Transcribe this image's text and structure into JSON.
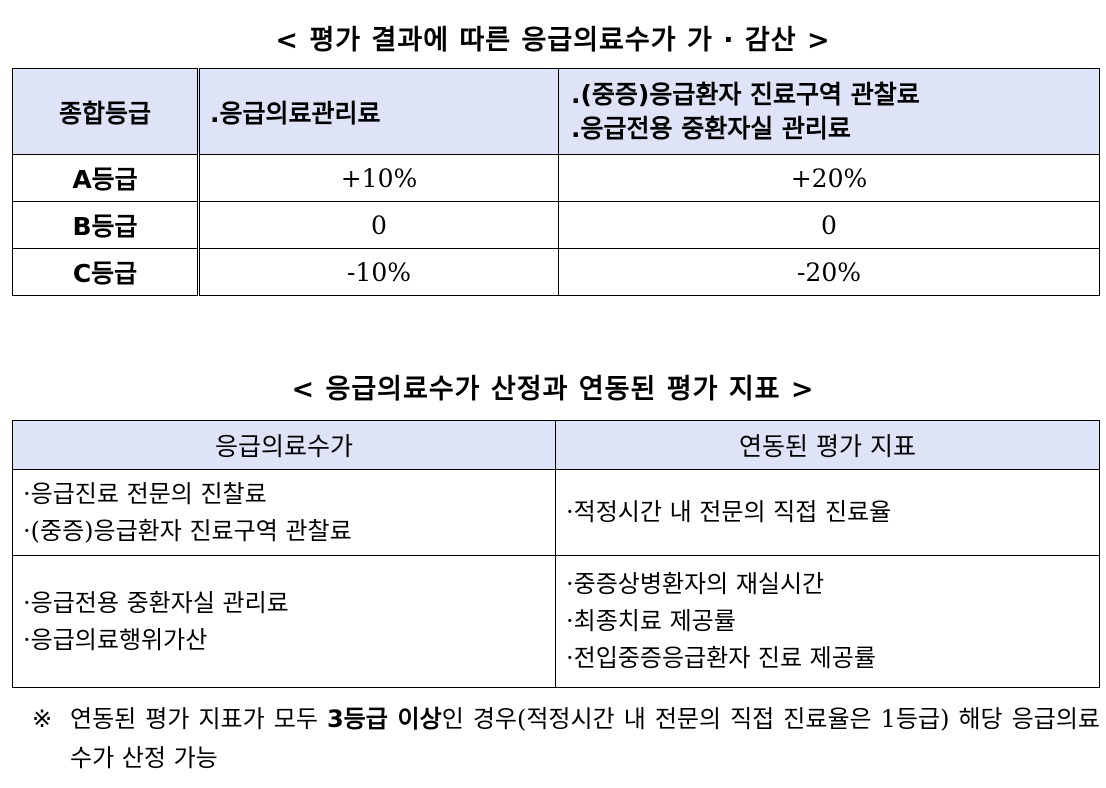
{
  "title1": "< 평가 결과에 따른 응급의료수가 가 · 감산 >",
  "table1": {
    "headers": [
      "종합등급",
      ".응급의료관리료",
      ".(중증)응급환자 진료구역 관찰료",
      ".응급전용 중환자실 관리료"
    ],
    "rows": [
      {
        "grade": "A등급",
        "col2": "+10%",
        "col3": "+20%"
      },
      {
        "grade": "B등급",
        "col2": "0",
        "col3": "0"
      },
      {
        "grade": "C등급",
        "col2": "-10%",
        "col3": "-20%"
      }
    ]
  },
  "title2": "< 응급의료수가 산정과 연동된 평가 지표 >",
  "table2": {
    "headers": [
      "응급의료수가",
      "연동된 평가 지표"
    ],
    "rows": [
      {
        "left": [
          "·응급진료 전문의 진찰료",
          "·(중증)응급환자 진료구역 관찰료"
        ],
        "right": [
          "·적정시간 내 전문의 직접 진료율"
        ]
      },
      {
        "left": [
          "·응급전용 중환자실 관리료",
          "·응급의료행위가산"
        ],
        "right": [
          "·중증상병환자의 재실시간",
          "·최종치료 제공률",
          "·전입중증응급환자 진료 제공률"
        ]
      }
    ]
  },
  "note": {
    "mark": "※",
    "pre": "연동된 평가 지표가 모두 ",
    "bold": "3등급 이상",
    "post": "인 경우(적정시간 내 전문의 직접 진료율은 1등급) 해당 응급의료수가 산정 가능"
  },
  "colors": {
    "header_bg": "#dfe3f7",
    "border": "#000000"
  }
}
